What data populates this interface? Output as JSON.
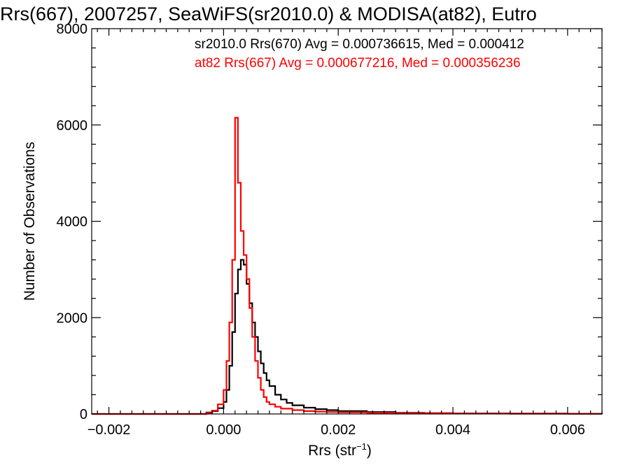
{
  "chart_data": {
    "type": "line",
    "title": "Rrs(667), 2007257, SeaWiFS(sr2010.0) & MODISA(at82), Eutro",
    "xlabel": "Rrs (str",
    "xlabel_sup": "−1",
    "xlabel_end": ")",
    "ylabel": "Number of Observations",
    "xlim": [
      -0.0023,
      0.0066
    ],
    "ylim": [
      0,
      8000
    ],
    "x_ticks": [
      -0.002,
      0.0,
      0.002,
      0.004,
      0.006
    ],
    "x_tick_labels": [
      "−0.002",
      "0.000",
      "0.002",
      "0.004",
      "0.006"
    ],
    "y_ticks": [
      0,
      2000,
      4000,
      6000,
      8000
    ],
    "y_tick_labels": [
      "0",
      "2000",
      "4000",
      "6000",
      "8000"
    ],
    "grid": false,
    "legend_position": "top-right",
    "series": [
      {
        "name": "sr2010.0 Rrs(670) Avg = 0.000736615, Med = 0.000412",
        "color": "#000000",
        "x": [
          -0.0023,
          -0.0005,
          -0.0003,
          -0.0002,
          -0.0001,
          0.0,
          5e-05,
          0.0001,
          0.00015,
          0.0002,
          0.00025,
          0.0003,
          0.00035,
          0.0004,
          0.00045,
          0.0005,
          0.00055,
          0.0006,
          0.00065,
          0.0007,
          0.00075,
          0.0008,
          0.0009,
          0.001,
          0.0011,
          0.0012,
          0.0014,
          0.0016,
          0.0018,
          0.002,
          0.0025,
          0.003,
          0.0035,
          0.004,
          0.005,
          0.006,
          0.0066
        ],
        "y": [
          0,
          0,
          30,
          60,
          120,
          250,
          500,
          1000,
          1700,
          2500,
          3000,
          3200,
          3100,
          2700,
          2300,
          1900,
          1600,
          1300,
          1050,
          850,
          700,
          580,
          400,
          300,
          230,
          180,
          130,
          100,
          80,
          60,
          40,
          25,
          18,
          12,
          8,
          5,
          0
        ]
      },
      {
        "name": "at82 Rrs(667) Avg = 0.000677216, Med = 0.000356236",
        "color": "#ff0000",
        "x": [
          -0.0023,
          -0.0003,
          -0.0002,
          -0.0001,
          0.0,
          5e-05,
          0.0001,
          0.00015,
          0.0002,
          0.00025,
          0.0003,
          0.00035,
          0.0004,
          0.00045,
          0.0005,
          0.00055,
          0.0006,
          0.00065,
          0.0007,
          0.00075,
          0.0008,
          0.0009,
          0.001,
          0.0012,
          0.0014,
          0.0016,
          0.0018,
          0.002,
          0.0025,
          0.003,
          0.004,
          0.005,
          0.006,
          0.0066
        ],
        "y": [
          0,
          20,
          70,
          200,
          500,
          1100,
          1900,
          3200,
          6150,
          4800,
          3800,
          3300,
          2800,
          2200,
          1600,
          1100,
          750,
          500,
          350,
          250,
          200,
          150,
          110,
          80,
          60,
          50,
          40,
          35,
          25,
          18,
          10,
          6,
          4,
          0
        ]
      }
    ]
  }
}
